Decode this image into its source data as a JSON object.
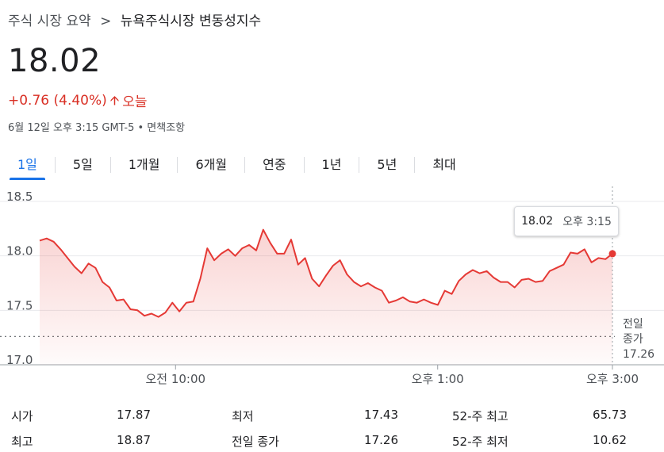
{
  "breadcrumb": {
    "root": "주식 시장 요약",
    "separator": ">",
    "current": "뉴욕주식시장 변동성지수"
  },
  "quote": {
    "price": "18.02",
    "change": "+0.76 (4.40%)",
    "period": "오늘",
    "timestamp": "6월 12일 오후 3:15 GMT-5 • 면책조항"
  },
  "tabs": [
    {
      "label": "1일",
      "active": true
    },
    {
      "label": "5일",
      "active": false
    },
    {
      "label": "1개월",
      "active": false
    },
    {
      "label": "6개월",
      "active": false
    },
    {
      "label": "연중",
      "active": false
    },
    {
      "label": "1년",
      "active": false
    },
    {
      "label": "5년",
      "active": false
    },
    {
      "label": "최대",
      "active": false
    }
  ],
  "tooltip": {
    "value": "18.02",
    "time": "오후 3:15"
  },
  "colors": {
    "line": "#e53935",
    "accent": "#1a73e8",
    "down_red": "#d93025"
  },
  "icons": {
    "change_arrow": "arrow-up-icon"
  },
  "chart_data": {
    "type": "line",
    "title": "",
    "xlabel": "",
    "ylabel": "",
    "ylim": [
      17.0,
      18.5
    ],
    "xlim": [
      0,
      105
    ],
    "y_ticks": [
      "18.5",
      "18.0",
      "17.5",
      "17.0"
    ],
    "x_ticks": [
      {
        "label": "오전 10:00",
        "x": 30
      },
      {
        "label": "오후 1:00",
        "x": 75
      },
      {
        "label": "오후 3:00",
        "x": 105
      }
    ],
    "previous_close": {
      "value": 17.26,
      "label_line1": "전일",
      "label_line2": "종가",
      "label_value": "17.26"
    },
    "series": [
      {
        "values": [
          18.14,
          18.16,
          18.13,
          18.06,
          17.98,
          17.9,
          17.84,
          17.93,
          17.89,
          17.76,
          17.71,
          17.59,
          17.6,
          17.51,
          17.5,
          17.45,
          17.47,
          17.44,
          17.48,
          17.57,
          17.49,
          17.57,
          17.58,
          17.79,
          18.07,
          17.96,
          18.02,
          18.06,
          18.0,
          18.07,
          18.1,
          18.05,
          18.24,
          18.12,
          18.02,
          18.02,
          18.15,
          17.92,
          17.98,
          17.79,
          17.72,
          17.82,
          17.91,
          17.96,
          17.83,
          17.76,
          17.72,
          17.75,
          17.71,
          17.68,
          17.57,
          17.59,
          17.62,
          17.58,
          17.57,
          17.6,
          17.57,
          17.55,
          17.68,
          17.65,
          17.77,
          17.83,
          17.87,
          17.84,
          17.86,
          17.8,
          17.76,
          17.76,
          17.71,
          17.78,
          17.79,
          17.76,
          17.77,
          17.86,
          17.89,
          17.92,
          18.03,
          18.02,
          18.06,
          17.94,
          17.98,
          17.97,
          18.02
        ]
      }
    ]
  },
  "stats": [
    {
      "label": "시가",
      "value": "17.87"
    },
    {
      "label": "최저",
      "value": "17.43"
    },
    {
      "label": "52-주 최고",
      "value": "65.73"
    },
    {
      "label": "최고",
      "value": "18.87"
    },
    {
      "label": "전일 종가",
      "value": "17.26"
    },
    {
      "label": "52-주 최저",
      "value": "10.62"
    }
  ]
}
